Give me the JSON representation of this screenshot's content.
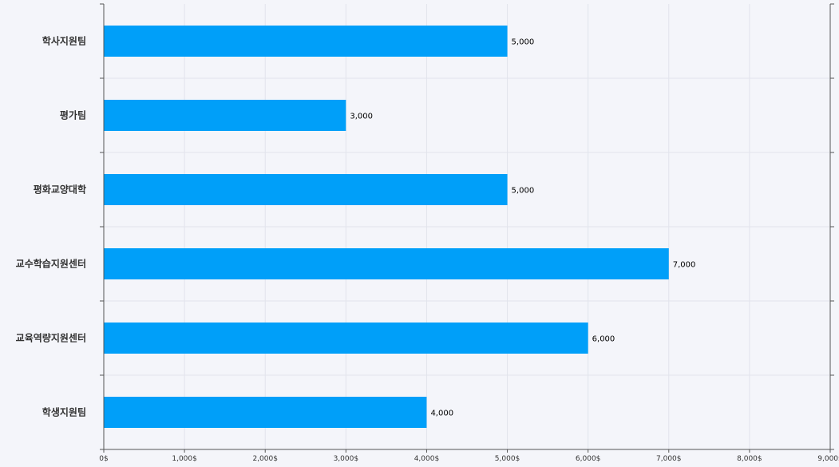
{
  "chart_data": {
    "type": "bar",
    "orientation": "horizontal",
    "categories": [
      "학사지원팀",
      "평가팀",
      "평화교양대학",
      "교수학습지원센터",
      "교육역량지원센터",
      "학생지원팀"
    ],
    "values": [
      5000,
      3000,
      5000,
      7000,
      6000,
      4000
    ],
    "data_labels": [
      "5,000",
      "3,000",
      "5,000",
      "7,000",
      "6,000",
      "4,000"
    ],
    "x_ticks": [
      "0$",
      "1,000$",
      "2,000$",
      "3,000$",
      "4,000$",
      "5,000$",
      "6,000$",
      "7,000$",
      "8,000$",
      "9,000$"
    ],
    "xlim": [
      0,
      9000
    ],
    "title": "",
    "xlabel": "",
    "ylabel": "",
    "grid": true,
    "legend": "none",
    "colors": {
      "bar": "#009ff9",
      "grid": "#e2e4ec",
      "axis": "#555555",
      "background": "#f4f5fa"
    }
  }
}
